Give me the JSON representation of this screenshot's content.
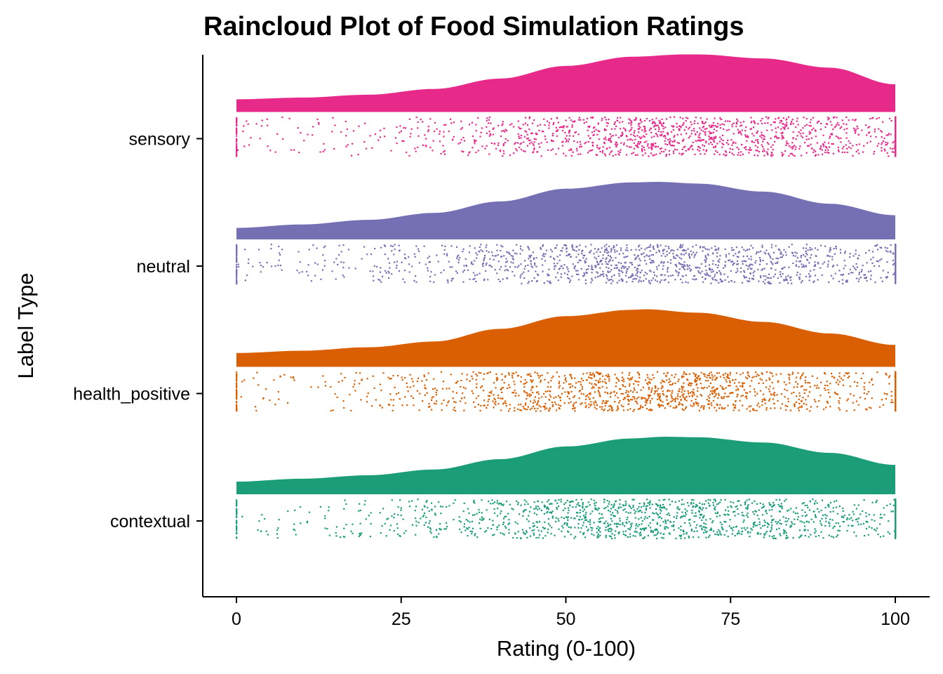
{
  "chart_data": {
    "type": "raincloud",
    "title": "Raincloud Plot of Food Simulation Ratings",
    "xlabel": "Rating (0-100)",
    "ylabel": "Label Type",
    "xlim": [
      0,
      100
    ],
    "x_ticks": [
      0,
      25,
      50,
      75,
      100
    ],
    "x_tick_labels": [
      "0",
      "25",
      "50",
      "75",
      "100"
    ],
    "categories": [
      "contextual",
      "health_positive",
      "neutral",
      "sensory"
    ],
    "series": [
      {
        "name": "contextual",
        "color": "#1B9E77",
        "density_x": [
          0,
          10,
          20,
          30,
          40,
          50,
          60,
          65,
          70,
          80,
          90,
          100
        ],
        "density_y": [
          0.22,
          0.27,
          0.33,
          0.43,
          0.61,
          0.83,
          0.97,
          1.0,
          0.99,
          0.9,
          0.72,
          0.51
        ],
        "n_points": 1500,
        "peak": 65,
        "spread": 22
      },
      {
        "name": "health_positive",
        "color": "#D95F02",
        "density_x": [
          0,
          10,
          20,
          30,
          40,
          50,
          60,
          62,
          70,
          80,
          90,
          100
        ],
        "density_y": [
          0.24,
          0.28,
          0.34,
          0.44,
          0.66,
          0.88,
          0.99,
          1.0,
          0.94,
          0.78,
          0.58,
          0.38
        ],
        "n_points": 1500,
        "peak": 62,
        "spread": 21
      },
      {
        "name": "neutral",
        "color": "#7570B3",
        "density_x": [
          0,
          10,
          20,
          30,
          40,
          50,
          60,
          64,
          70,
          80,
          90,
          100
        ],
        "density_y": [
          0.2,
          0.26,
          0.34,
          0.46,
          0.66,
          0.88,
          0.99,
          1.0,
          0.97,
          0.83,
          0.62,
          0.42
        ],
        "n_points": 1500,
        "peak": 63,
        "spread": 23
      },
      {
        "name": "sensory",
        "color": "#E7298A",
        "density_x": [
          0,
          10,
          20,
          30,
          40,
          50,
          60,
          68,
          70,
          80,
          90,
          100
        ],
        "density_y": [
          0.22,
          0.25,
          0.3,
          0.4,
          0.58,
          0.8,
          0.96,
          1.0,
          1.0,
          0.93,
          0.77,
          0.48
        ],
        "n_points": 1500,
        "peak": 68,
        "spread": 22
      }
    ],
    "grid": false,
    "legend": "none"
  }
}
